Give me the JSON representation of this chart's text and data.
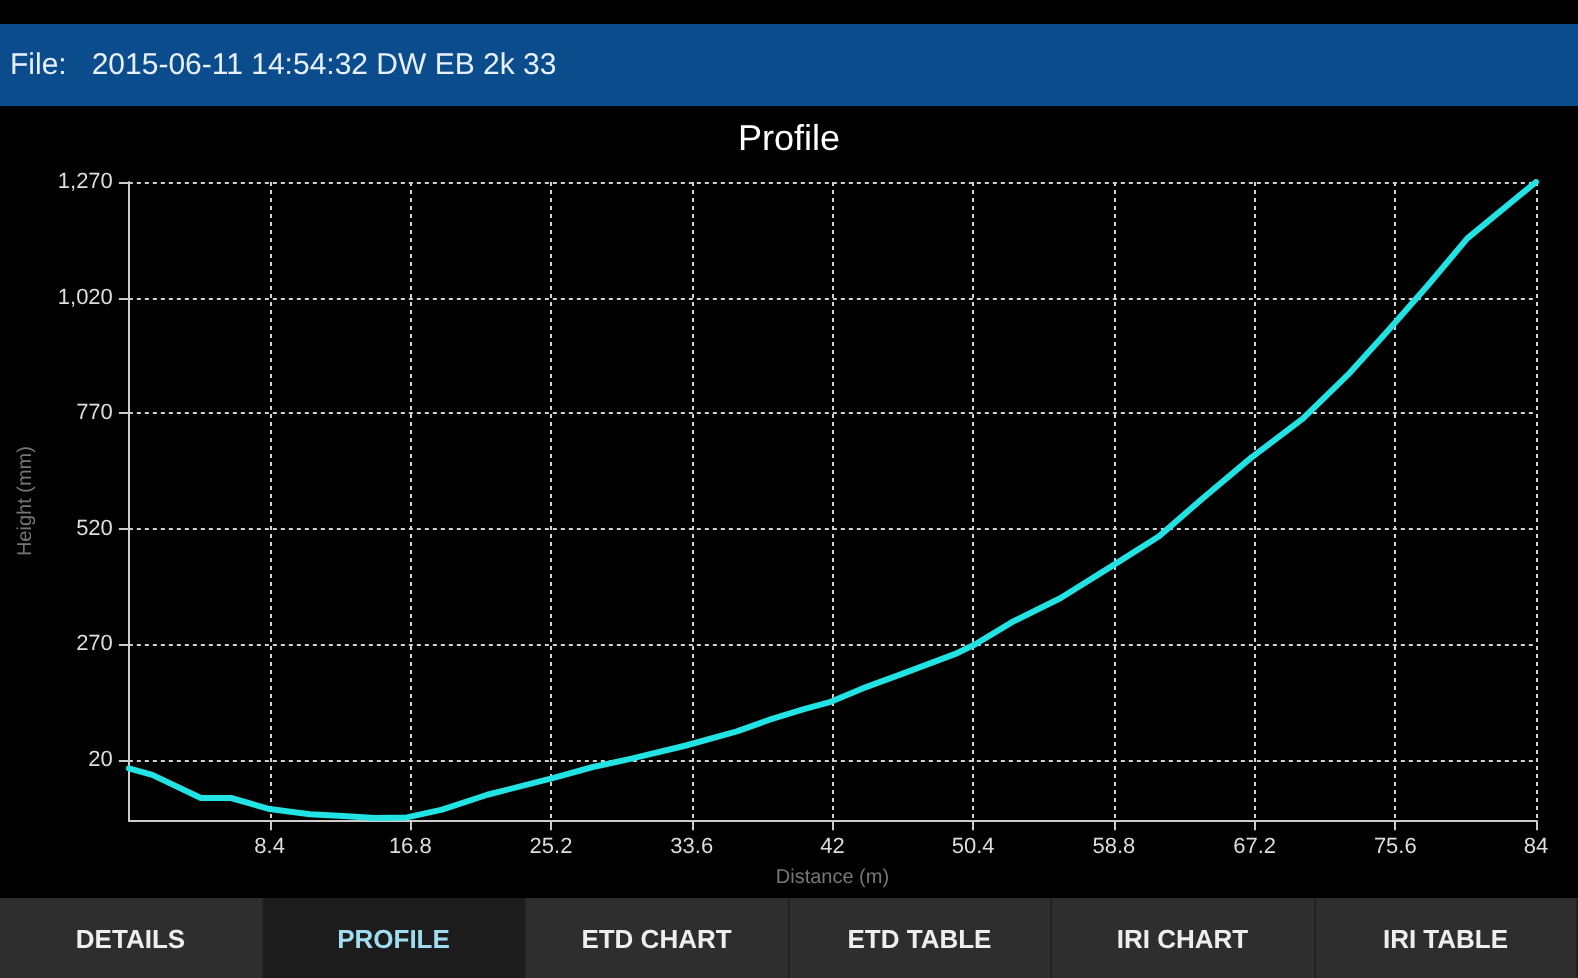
{
  "chart_data": {
    "type": "line",
    "title": "Profile",
    "subtitle": "File:   2015-06-11 14:54:32 DW EB 2k 33",
    "xlabel": "Distance (m)",
    "ylabel": "Height (mm)",
    "annotations": [
      "DETAILS",
      "PROFILE",
      "ETD CHART",
      "ETD TABLE",
      "IRI CHART",
      "IRI TABLE"
    ],
    "xlim": [
      0,
      84
    ],
    "xticks": [
      8.4,
      16.8,
      25.2,
      33.6,
      42,
      50.4,
      58.8,
      67.2,
      75.6,
      84
    ],
    "ylim": [
      -110,
      1270
    ],
    "yticks": [
      20,
      270,
      520,
      770,
      {
        "value": 1020,
        "label": "1,020"
      },
      {
        "value": 1270,
        "label": "1,270"
      }
    ],
    "grid": true,
    "marker": "none",
    "line_style": "solid",
    "series": [
      {
        "color": "#22e3e3",
        "x": [
          0,
          1.4,
          4.3,
          6.1,
          8.4,
          10.8,
          12.8,
          14.7,
          16.6,
          18.7,
          21.4,
          25.3,
          27.7,
          30,
          33.2,
          36.3,
          38.3,
          40.3,
          41.9,
          43.8,
          46.2,
          49.3,
          50.5,
          52.8,
          55.6,
          58.7,
          61.5,
          64.2,
          67,
          70.1,
          72.9,
          75.2,
          77.6,
          79.9,
          84
        ],
        "values": [
          2,
          -12,
          -62,
          -62,
          -86,
          -97,
          -101,
          -105,
          -104,
          -87,
          -55,
          -19,
          5,
          23,
          51,
          82,
          108,
          130,
          146,
          175,
          207,
          249,
          270,
          320,
          370,
          440,
          504,
          589,
          674,
          759,
          858,
          950,
          1049,
          1148,
          1270
        ]
      }
    ]
  }
}
